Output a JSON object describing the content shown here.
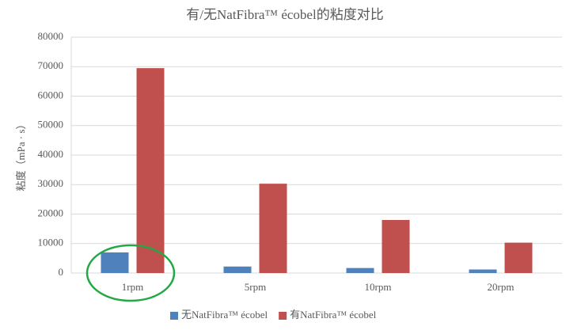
{
  "chart_data": {
    "type": "bar",
    "title": "有/无NatFibra™ écobel的粘度对比",
    "y_label": "粘度（mPa · s）",
    "categories": [
      "1rpm",
      "5rpm",
      "10rpm",
      "20rpm"
    ],
    "series": [
      {
        "name": "无NatFibra™ écobel",
        "color": "#4f81bd",
        "values": [
          7000,
          2200,
          1700,
          1200
        ]
      },
      {
        "name": "有NatFibra™ écobel",
        "color": "#c0504d",
        "values": [
          69500,
          30300,
          18000,
          10300
        ]
      }
    ],
    "ylim": [
      0,
      80000
    ],
    "yticks": [
      0,
      10000,
      20000,
      30000,
      40000,
      50000,
      60000,
      70000,
      80000
    ],
    "grid": true,
    "legend": "bottom"
  }
}
